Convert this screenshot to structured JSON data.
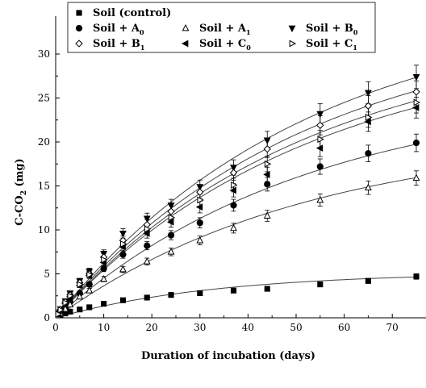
{
  "chart_data": {
    "type": "scatter",
    "title": "",
    "xlabel": "Duration of incubation (days)",
    "ylabel_main": "C-CO",
    "ylabel_sub": "2",
    "ylabel_unit": " (mg)",
    "xlim": [
      0,
      75
    ],
    "ylim": [
      0,
      30
    ],
    "xticks": [
      0,
      10,
      20,
      30,
      40,
      50,
      60,
      70
    ],
    "yticks": [
      0,
      5,
      10,
      15,
      20,
      25,
      30
    ],
    "grid": false,
    "legend_position": "top",
    "x": [
      0.5,
      1,
      2,
      3,
      5,
      7,
      10,
      14,
      19,
      24,
      30,
      37,
      44,
      55,
      65,
      75
    ],
    "series": [
      {
        "name": "Soil (control)",
        "sub": "",
        "marker": "square-filled",
        "values": [
          0.1,
          0.3,
          0.5,
          0.7,
          0.95,
          1.2,
          1.6,
          2.0,
          2.3,
          2.6,
          2.8,
          3.1,
          3.3,
          3.8,
          4.2,
          4.7
        ]
      },
      {
        "name": "Soil + A",
        "sub": "0",
        "marker": "circle-filled",
        "values": [
          0.3,
          0.6,
          1.2,
          1.8,
          2.8,
          3.8,
          5.6,
          7.2,
          8.2,
          9.4,
          10.8,
          12.8,
          15.2,
          17.2,
          18.7,
          19.9
        ]
      },
      {
        "name": "Soil + A",
        "sub": "1",
        "marker": "triangle-up-open",
        "values": [
          0.25,
          0.5,
          1.0,
          1.5,
          2.4,
          3.1,
          4.4,
          5.5,
          6.4,
          7.5,
          8.8,
          10.2,
          11.6,
          13.4,
          14.8,
          15.9
        ]
      },
      {
        "name": "Soil + B",
        "sub": "0",
        "marker": "triangle-down-filled",
        "values": [
          0.5,
          1.0,
          1.9,
          2.8,
          4.2,
          5.3,
          7.3,
          9.6,
          11.3,
          12.8,
          14.9,
          17.1,
          20.2,
          23.2,
          25.6,
          27.4
        ]
      },
      {
        "name": "Soil + B",
        "sub": "1",
        "marker": "diamond-open",
        "values": [
          0.45,
          0.95,
          1.8,
          2.6,
          4.0,
          5.0,
          6.9,
          8.8,
          10.6,
          12.1,
          14.3,
          16.5,
          19.2,
          21.9,
          24.1,
          25.7
        ]
      },
      {
        "name": "Soil + C",
        "sub": "0",
        "marker": "triangle-left-filled",
        "values": [
          0.4,
          0.85,
          1.6,
          2.4,
          3.7,
          4.8,
          6.3,
          8.1,
          9.6,
          10.9,
          12.6,
          14.5,
          16.3,
          19.3,
          22.3,
          23.9
        ]
      },
      {
        "name": "Soil + C",
        "sub": "1",
        "marker": "triangle-right-open",
        "values": [
          0.42,
          0.9,
          1.7,
          2.5,
          3.8,
          4.9,
          6.6,
          8.4,
          10.1,
          11.4,
          13.4,
          15.1,
          17.5,
          20.3,
          22.8,
          24.5
        ]
      }
    ],
    "fits": [
      {
        "series": 0,
        "a": 5.2,
        "k": 0.03
      },
      {
        "series": 1,
        "a": 26.0,
        "k": 0.019
      },
      {
        "series": 2,
        "a": 21.0,
        "k": 0.019
      },
      {
        "series": 3,
        "a": 36.0,
        "k": 0.019
      },
      {
        "series": 4,
        "a": 34.0,
        "k": 0.019
      },
      {
        "series": 5,
        "a": 31.5,
        "k": 0.019
      },
      {
        "series": 6,
        "a": 32.5,
        "k": 0.019
      }
    ]
  }
}
